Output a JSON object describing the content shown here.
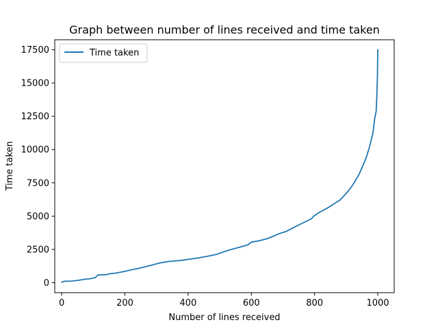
{
  "chart_data": {
    "type": "line",
    "title": "Graph between number of lines received and time taken",
    "xlabel": "Number of lines received",
    "ylabel": "Time taken",
    "xlim": [
      -22,
      1052
    ],
    "ylim": [
      -750,
      18250
    ],
    "xticks": [
      0,
      200,
      400,
      600,
      800,
      1000
    ],
    "yticks": [
      0,
      2500,
      5000,
      7500,
      10000,
      12500,
      15000,
      17500
    ],
    "grid": false,
    "legend_position": "upper-left",
    "series": [
      {
        "name": "Time taken",
        "color": "#1f77b4",
        "x": [
          0,
          10,
          30,
          50,
          70,
          90,
          105,
          115,
          120,
          140,
          155,
          170,
          185,
          200,
          220,
          250,
          280,
          310,
          340,
          360,
          380,
          400,
          430,
          460,
          490,
          510,
          530,
          560,
          590,
          600,
          625,
          650,
          670,
          690,
          710,
          730,
          760,
          790,
          800,
          820,
          840,
          860,
          880,
          900,
          920,
          940,
          955,
          965,
          975,
          985,
          990,
          995,
          997,
          999,
          1000
        ],
        "y": [
          50,
          110,
          120,
          170,
          250,
          300,
          370,
          580,
          590,
          600,
          680,
          720,
          780,
          850,
          960,
          1110,
          1290,
          1480,
          1600,
          1640,
          1680,
          1750,
          1850,
          1980,
          2130,
          2300,
          2450,
          2650,
          2850,
          3050,
          3150,
          3300,
          3500,
          3700,
          3850,
          4100,
          4450,
          4800,
          5050,
          5350,
          5600,
          5900,
          6200,
          6700,
          7300,
          8100,
          8900,
          9500,
          10300,
          11300,
          12300,
          12900,
          14000,
          15500,
          17500
        ]
      }
    ]
  }
}
